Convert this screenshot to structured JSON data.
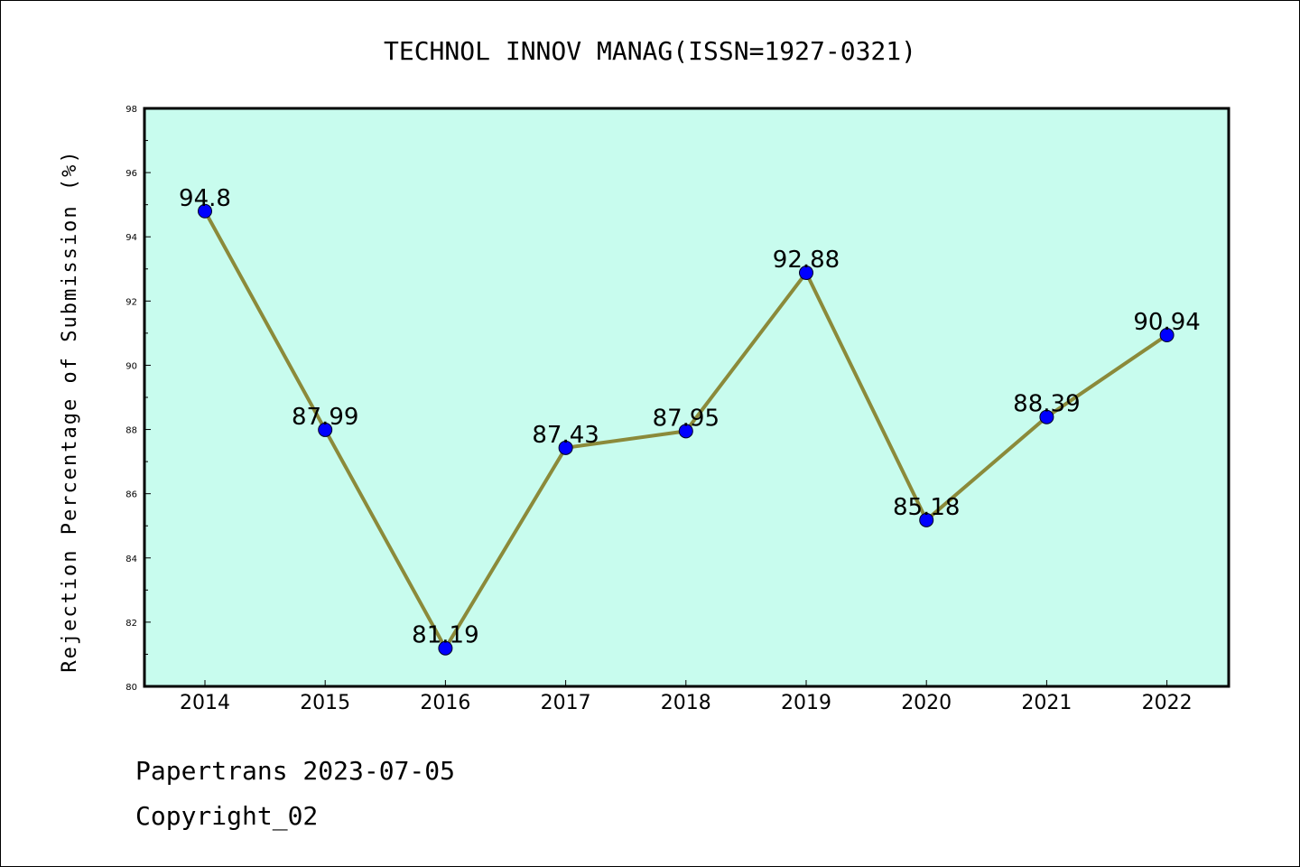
{
  "chart_data": {
    "type": "line",
    "title": "TECHNOL INNOV MANAG(ISSN=1927-0321)",
    "xlabel": "",
    "ylabel": "Rejection Percentage of Submission (%)",
    "categories": [
      "2014",
      "2015",
      "2016",
      "2017",
      "2018",
      "2019",
      "2020",
      "2021",
      "2022"
    ],
    "series": [
      {
        "values": [
          94.8,
          87.99,
          81.19,
          87.43,
          87.95,
          92.88,
          85.18,
          88.39,
          90.94
        ],
        "labels": [
          "94.8",
          "87.99",
          "81.19",
          "87.43",
          "87.95",
          "92.88",
          "85.18",
          "88.39",
          "90.94"
        ]
      }
    ],
    "ylim": [
      80,
      98
    ],
    "yticks": [
      "80",
      "82",
      "84",
      "86",
      "88",
      "90",
      "92",
      "94",
      "96",
      "98"
    ],
    "grid": false,
    "legend": "none",
    "colors": {
      "plot_background": "#c8fcee",
      "line": "#8b8a3a",
      "marker": "#0000ff"
    }
  },
  "footer": {
    "source": "Papertrans 2023-07-05",
    "copyright": "Copyright_02"
  }
}
